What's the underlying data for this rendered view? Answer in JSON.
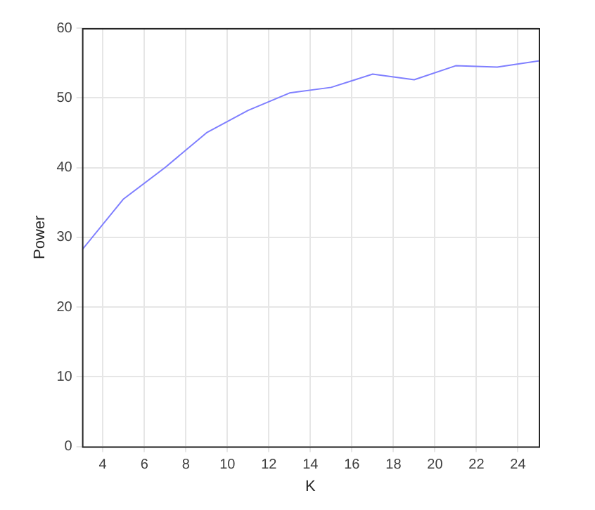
{
  "chart_data": {
    "type": "line",
    "xlabel": "K",
    "ylabel": "Power",
    "x": [
      3,
      5,
      7,
      9,
      11,
      13,
      15,
      17,
      19,
      21,
      23,
      25
    ],
    "series": [
      {
        "color": "#7f7fff",
        "values": [
          28.2,
          35.5,
          40,
          45,
          48.2,
          50.7,
          51.5,
          53.4,
          52.6,
          54.6,
          54.4,
          55.3
        ]
      }
    ],
    "xlim": [
      3,
      25
    ],
    "xticks": [
      4,
      6,
      8,
      10,
      12,
      14,
      16,
      18,
      20,
      22,
      24
    ],
    "ylim": [
      0,
      60
    ],
    "yticks": [
      0,
      10,
      20,
      30,
      40,
      50,
      60
    ],
    "grid": true,
    "legend": false,
    "marker": "none",
    "line_style": "solid"
  }
}
